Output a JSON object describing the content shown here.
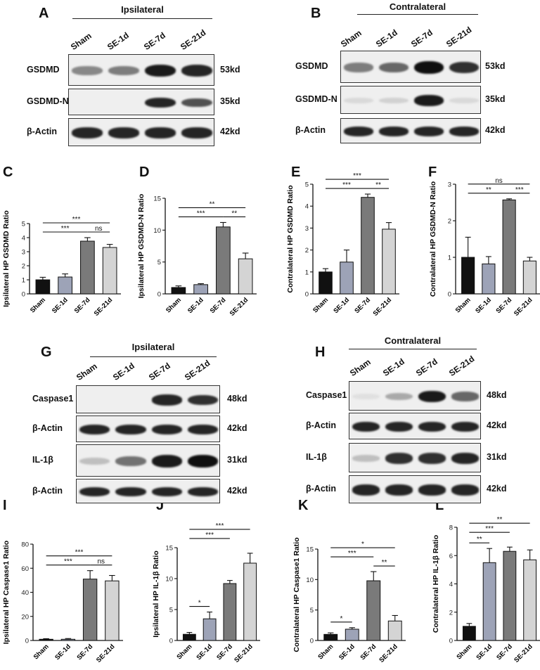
{
  "panel_labels": {
    "A": "A",
    "B": "B",
    "C": "C",
    "D": "D",
    "E": "E",
    "F": "F",
    "G": "G",
    "H": "H",
    "I": "I",
    "J": "J",
    "K": "K",
    "L": "L"
  },
  "blots": {
    "A": {
      "title": "Ipsilateral",
      "lanes": [
        "Sham",
        "SE-1d",
        "SE-7d",
        "SE-21d"
      ],
      "rows": [
        {
          "name": "GSDMD",
          "kd": "53kd",
          "bands": [
            0.45,
            0.5,
            0.95,
            0.9
          ]
        },
        {
          "name": "GSDMD-N",
          "kd": "35kd",
          "bands": [
            0,
            0,
            0.9,
            0.7
          ]
        },
        {
          "name": "β-Actin",
          "kd": "42kd",
          "bands": [
            0.9,
            0.9,
            0.9,
            0.9
          ]
        }
      ]
    },
    "B": {
      "title": "Contralateral",
      "lanes": [
        "Sham",
        "SE-1d",
        "SE-7d",
        "SE-21d"
      ],
      "rows": [
        {
          "name": "GSDMD",
          "kd": "53kd",
          "bands": [
            0.5,
            0.6,
            1,
            0.85
          ]
        },
        {
          "name": "GSDMD-N",
          "kd": "35kd",
          "bands": [
            0.08,
            0.12,
            0.95,
            0.08
          ]
        },
        {
          "name": "β-Actin",
          "kd": "42kd",
          "bands": [
            0.9,
            0.9,
            0.9,
            0.9
          ]
        }
      ]
    },
    "G": {
      "title": "Ipsilateral",
      "lanes": [
        "Sham",
        "SE-1d",
        "SE-7d",
        "SE-21d"
      ],
      "rows": [
        {
          "name": "Caspase1",
          "kd": "48kd",
          "bands": [
            0,
            0,
            0.9,
            0.85
          ]
        },
        {
          "name": "β-Actin",
          "kd": "42kd",
          "bands": [
            0.9,
            0.9,
            0.9,
            0.9
          ]
        },
        {
          "name": "IL-1β",
          "kd": "31kd",
          "bands": [
            0.2,
            0.55,
            0.95,
            1
          ]
        },
        {
          "name": "β-Actin",
          "kd": "42kd",
          "bands": [
            0.9,
            0.9,
            0.9,
            0.9
          ]
        }
      ]
    },
    "H": {
      "title": "Contralateral",
      "lanes": [
        "Sham",
        "SE-1d",
        "SE-7d",
        "SE-21d"
      ],
      "rows": [
        {
          "name": "Caspase1",
          "kd": "48kd",
          "bands": [
            0.05,
            0.3,
            0.95,
            0.6
          ]
        },
        {
          "name": "β-Actin",
          "kd": "42kd",
          "bands": [
            0.9,
            0.9,
            0.9,
            0.9
          ]
        },
        {
          "name": "IL-1β",
          "kd": "31kd",
          "bands": [
            0.2,
            0.85,
            0.85,
            0.9
          ]
        },
        {
          "name": "β-Actin",
          "kd": "42kd",
          "bands": [
            0.9,
            0.9,
            0.9,
            0.9
          ]
        }
      ]
    }
  },
  "colors": {
    "Sham": "#111111",
    "SE-1d": "#9da3b7",
    "SE-7d": "#7a7a7a",
    "SE-21d": "#d4d4d4"
  },
  "chart_data": [
    {
      "id": "C",
      "type": "bar",
      "categories": [
        "Sham",
        "SE-1d",
        "SE-7d",
        "SE-21d"
      ],
      "values": [
        1.0,
        1.2,
        3.75,
        3.3
      ],
      "errors": [
        0.18,
        0.22,
        0.25,
        0.22
      ],
      "ylabel": "Ipsilateral HP GSDMD Ratio",
      "ylim": [
        0,
        5
      ],
      "yticks": [
        0,
        1,
        2,
        3,
        4,
        5
      ],
      "sig": [
        {
          "from": 0,
          "to": 3,
          "label": "***"
        },
        {
          "from": 0,
          "to": 2,
          "label": "***"
        },
        {
          "from": 2,
          "to": 3,
          "label": "ns"
        }
      ]
    },
    {
      "id": "D",
      "type": "bar",
      "categories": [
        "Sham",
        "SE-1d",
        "SE-7d",
        "SE-21d"
      ],
      "values": [
        1.0,
        1.45,
        10.5,
        5.5
      ],
      "errors": [
        0.25,
        0.15,
        0.7,
        0.9
      ],
      "ylabel": "Ipsilateral HP GSDMD-N Ratio",
      "ylim": [
        0,
        15
      ],
      "yticks": [
        0,
        5,
        10,
        15
      ],
      "sig": [
        {
          "from": 0,
          "to": 3,
          "label": "**"
        },
        {
          "from": 0,
          "to": 2,
          "label": "***"
        },
        {
          "from": 2,
          "to": 3,
          "label": "**"
        }
      ]
    },
    {
      "id": "E",
      "type": "bar",
      "categories": [
        "Sham",
        "SE-1d",
        "SE-7d",
        "SE-21d"
      ],
      "values": [
        1.0,
        1.45,
        4.4,
        2.95
      ],
      "errors": [
        0.15,
        0.55,
        0.15,
        0.3
      ],
      "ylabel": "Contralateral HP GSDMD Ratio",
      "ylim": [
        0,
        5
      ],
      "yticks": [
        0,
        1,
        2,
        3,
        4,
        5
      ],
      "sig": [
        {
          "from": 0,
          "to": 3,
          "label": "***"
        },
        {
          "from": 0,
          "to": 2,
          "label": "***"
        },
        {
          "from": 2,
          "to": 3,
          "label": "**"
        }
      ]
    },
    {
      "id": "F",
      "type": "bar",
      "categories": [
        "Sham",
        "SE-1d",
        "SE-7d",
        "SE-21d"
      ],
      "values": [
        1.0,
        0.82,
        2.57,
        0.9
      ],
      "errors": [
        0.55,
        0.2,
        0.03,
        0.1
      ],
      "ylabel": "Contralateral HP GSDMD-N Ratio",
      "ylim": [
        0,
        3
      ],
      "yticks": [
        0,
        1,
        2,
        3
      ],
      "sig": [
        {
          "from": 0,
          "to": 3,
          "label": "ns"
        },
        {
          "from": 0,
          "to": 2,
          "label": "**"
        },
        {
          "from": 2,
          "to": 3,
          "label": "***"
        }
      ]
    },
    {
      "id": "I",
      "type": "bar",
      "categories": [
        "Sham",
        "SE-1d",
        "SE-7d",
        "SE-21d"
      ],
      "values": [
        1.0,
        1.0,
        51.0,
        49.5
      ],
      "errors": [
        0.5,
        0.6,
        7.0,
        4.5
      ],
      "ylabel": "Ipsilateral HP Caspase1 Ratio",
      "ylim": [
        0,
        80
      ],
      "yticks": [
        0,
        20,
        40,
        60,
        80
      ],
      "sig": [
        {
          "from": 0,
          "to": 3,
          "label": "***"
        },
        {
          "from": 0,
          "to": 2,
          "label": "***"
        },
        {
          "from": 2,
          "to": 3,
          "label": "ns"
        }
      ]
    },
    {
      "id": "J",
      "type": "bar",
      "categories": [
        "Sham",
        "SE-1d",
        "SE-7d",
        "SE-21d"
      ],
      "values": [
        1.0,
        3.5,
        9.2,
        12.5
      ],
      "errors": [
        0.3,
        1.1,
        0.5,
        1.6
      ],
      "ylabel": "Ipsilateral HP IL-1β Ratio",
      "ylim": [
        0,
        15
      ],
      "yticks": [
        0,
        5,
        10,
        15
      ],
      "sig": [
        {
          "from": 0,
          "to": 3,
          "label": "***"
        },
        {
          "from": 0,
          "to": 2,
          "label": "***"
        },
        {
          "from": 0,
          "to": 1,
          "label": "*"
        }
      ]
    },
    {
      "id": "K",
      "type": "bar",
      "categories": [
        "Sham",
        "SE-1d",
        "SE-7d",
        "SE-21d"
      ],
      "values": [
        1.0,
        1.85,
        9.8,
        3.2
      ],
      "errors": [
        0.25,
        0.25,
        1.5,
        0.9
      ],
      "ylabel": "Contralateral HP Caspase1 Ratio",
      "ylim": [
        0,
        15
      ],
      "yticks": [
        0,
        5,
        10,
        15
      ],
      "sig": [
        {
          "from": 0,
          "to": 3,
          "label": "*"
        },
        {
          "from": 0,
          "to": 2,
          "label": "***"
        },
        {
          "from": 2,
          "to": 3,
          "label": "**"
        },
        {
          "from": 0,
          "to": 1,
          "label": "*"
        }
      ]
    },
    {
      "id": "L",
      "type": "bar",
      "categories": [
        "Sham",
        "SE-1d",
        "SE-7d",
        "SE-21d"
      ],
      "values": [
        1.0,
        5.5,
        6.3,
        5.7
      ],
      "errors": [
        0.2,
        1.0,
        0.3,
        0.7
      ],
      "ylabel": "Contralateral HP IL-1β Ratio",
      "ylim": [
        0,
        8
      ],
      "yticks": [
        0,
        2,
        4,
        6,
        8
      ],
      "sig": [
        {
          "from": 0,
          "to": 3,
          "label": "**"
        },
        {
          "from": 0,
          "to": 2,
          "label": "***"
        },
        {
          "from": 0,
          "to": 1,
          "label": "**"
        }
      ]
    }
  ]
}
